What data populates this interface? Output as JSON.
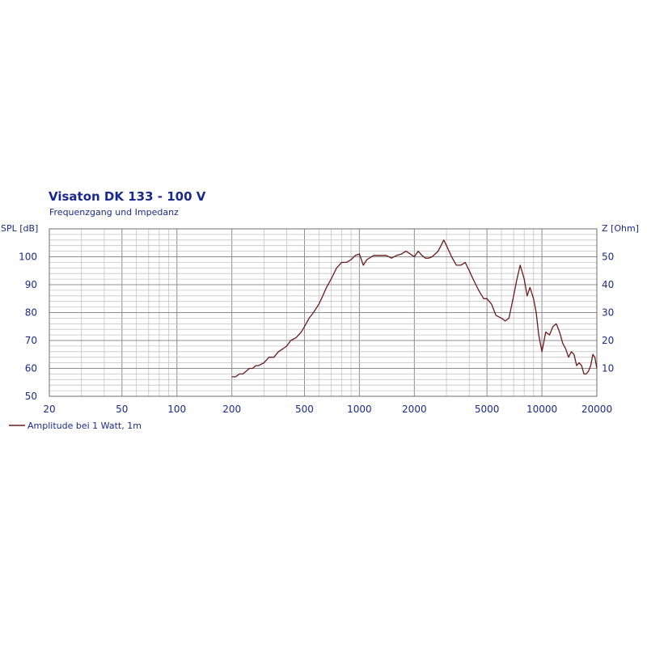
{
  "chart_data": {
    "type": "line",
    "title": "Visaton DK 133 - 100 V",
    "subtitle": "Frequenzgang und Impedanz",
    "xlabel": "",
    "ylabel": "SPL [dB]",
    "y2label": "Z [Ohm]",
    "x_scale": "log",
    "xlim": [
      20,
      20000
    ],
    "ylim": [
      50,
      110
    ],
    "y2lim": [
      0,
      60
    ],
    "x_ticks": [
      20,
      50,
      100,
      200,
      500,
      1000,
      2000,
      5000,
      10000,
      20000
    ],
    "y_ticks": [
      50,
      60,
      70,
      80,
      90,
      100
    ],
    "y2_ticks": [
      10,
      20,
      30,
      40,
      50
    ],
    "grid": true,
    "legend_position": "bottom-left",
    "colors": {
      "series": "#6b1a1a",
      "text": "#1a2a8c",
      "grid_major": "#8c8c8c",
      "grid_minor": "#c4c4c4"
    },
    "series": [
      {
        "name": "Amplitude bei 1 Watt, 1m",
        "x": [
          200,
          210,
          220,
          230,
          240,
          250,
          260,
          270,
          280,
          300,
          320,
          340,
          360,
          380,
          400,
          420,
          450,
          480,
          500,
          530,
          560,
          600,
          630,
          660,
          700,
          750,
          800,
          850,
          900,
          950,
          1000,
          1050,
          1100,
          1200,
          1300,
          1400,
          1500,
          1600,
          1700,
          1800,
          1900,
          2000,
          2100,
          2200,
          2300,
          2400,
          2500,
          2600,
          2700,
          2800,
          2900,
          3000,
          3200,
          3400,
          3600,
          3800,
          4000,
          4200,
          4500,
          4800,
          5000,
          5300,
          5600,
          6000,
          6300,
          6600,
          7000,
          7300,
          7600,
          8000,
          8300,
          8600,
          9000,
          9300,
          9600,
          10000,
          10500,
          11000,
          11500,
          12000,
          12500,
          13000,
          13500,
          14000,
          14500,
          15000,
          15500,
          16000,
          16500,
          17000,
          17500,
          18000,
          18500,
          19000,
          19500,
          20000
        ],
        "values": [
          57,
          57,
          58,
          58,
          59,
          60,
          60,
          61,
          61,
          62,
          64,
          64,
          66,
          67,
          68,
          70,
          71,
          73,
          75,
          78,
          80,
          83,
          86,
          89,
          92,
          96,
          98,
          98,
          99,
          100.5,
          101,
          97,
          99,
          100.5,
          100.5,
          100.5,
          99.5,
          100.5,
          101,
          102,
          101,
          100,
          102,
          100.5,
          99.5,
          99.5,
          100,
          101,
          102,
          104,
          106,
          104,
          100,
          97,
          97,
          98,
          95,
          92,
          88,
          85,
          85,
          83,
          79,
          78,
          77,
          78,
          86,
          92,
          97,
          92,
          86,
          89,
          85,
          80,
          72,
          66,
          73,
          72,
          75,
          76,
          73,
          69,
          67,
          64,
          66,
          65,
          61,
          62,
          61,
          58,
          58,
          59,
          61,
          65,
          64,
          60
        ]
      }
    ]
  }
}
